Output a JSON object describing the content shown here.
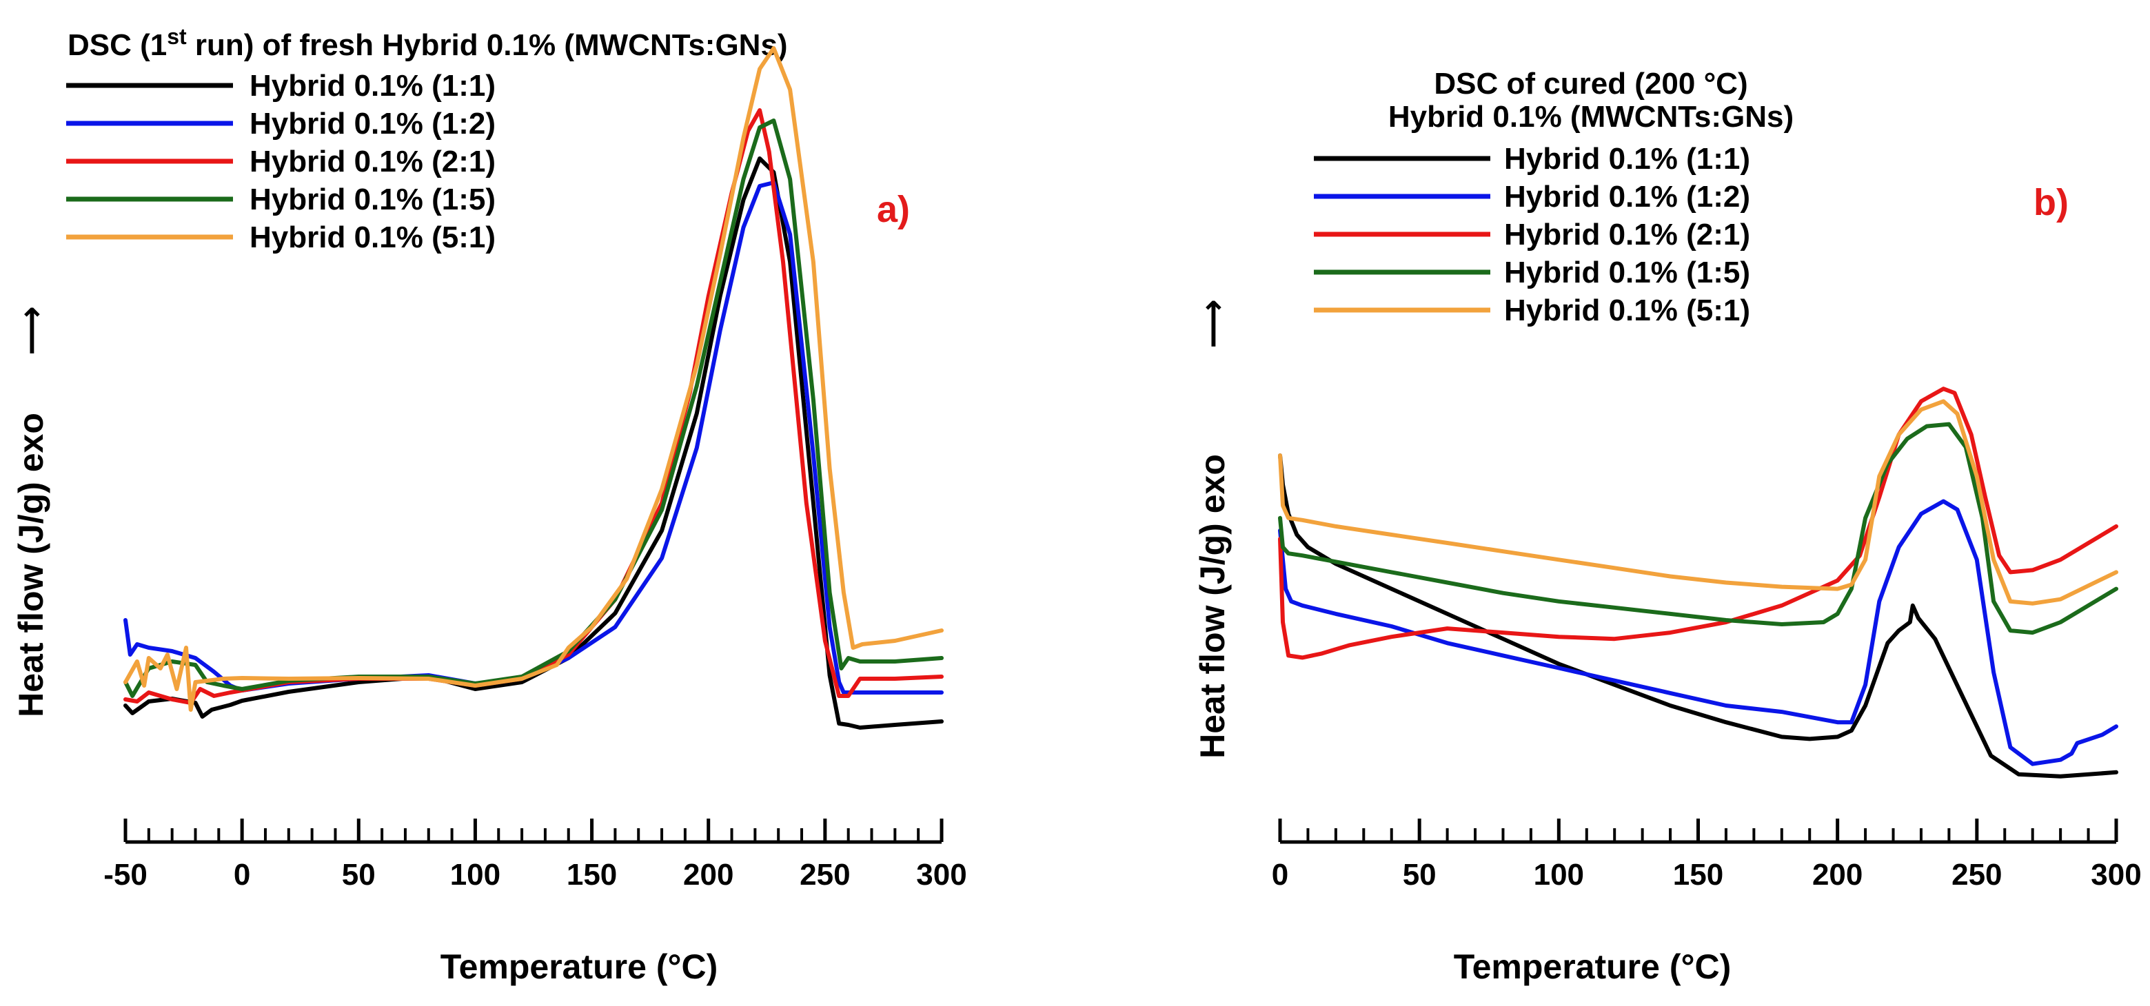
{
  "chart_data": [
    {
      "type": "line",
      "panel_tag": "a)",
      "title": {
        "prefix": "DSC (1",
        "superscript": "st",
        "suffix": " run) of fresh Hybrid 0.1% (MWCNTs:GNs)"
      },
      "xlabel": "Temperature (°C)",
      "ylabel": "Heat flow (J/g) exo",
      "ylabel_arrow": "⟶",
      "xlim": [
        -50,
        300
      ],
      "ylim": [
        0,
        100
      ],
      "y_ticks_shown": false,
      "x_ticks": [
        -50,
        0,
        50,
        100,
        150,
        200,
        250,
        300
      ],
      "x_tick_labels": [
        "-50",
        "0",
        "50",
        "100",
        "150",
        "200",
        "250",
        "300"
      ],
      "minor_tick_step": 10,
      "legend": {
        "position": "top-left"
      },
      "series": [
        {
          "name": "Hybrid 0.1% (1:1)",
          "color": "#000000",
          "x": [
            -50,
            -47,
            -40,
            -30,
            -20,
            -17,
            -13,
            -5,
            0,
            20,
            50,
            80,
            100,
            120,
            140,
            160,
            180,
            195,
            205,
            215,
            222,
            228,
            235,
            245,
            252,
            256,
            260,
            265,
            280,
            300
          ],
          "y": [
            10.6,
            9.5,
            11.2,
            11.6,
            11.0,
            9.0,
            10.0,
            10.7,
            11.3,
            12.6,
            14.0,
            14.8,
            13.0,
            14.0,
            17.5,
            24.0,
            36.0,
            53.0,
            70.0,
            84.0,
            90.0,
            88.0,
            75.0,
            40.0,
            15.0,
            8.0,
            7.8,
            7.4,
            7.8,
            8.3
          ]
        },
        {
          "name": "Hybrid 0.1% (1:2)",
          "color": "#0a15e8",
          "x": [
            -50,
            -48,
            -45,
            -40,
            -30,
            -20,
            -12,
            -5,
            0,
            20,
            50,
            80,
            100,
            120,
            140,
            160,
            180,
            195,
            205,
            215,
            222,
            228,
            235,
            245,
            252,
            256,
            258,
            262,
            280,
            300
          ],
          "y": [
            23.0,
            18.0,
            19.5,
            19.0,
            18.5,
            17.5,
            15.5,
            13.5,
            12.8,
            13.8,
            14.5,
            15.0,
            13.8,
            14.5,
            17.5,
            22.0,
            32.0,
            48.0,
            65.0,
            80.0,
            86.0,
            86.5,
            79.0,
            47.0,
            22.0,
            14.0,
            12.5,
            12.5,
            12.5,
            12.5
          ]
        },
        {
          "name": "Hybrid 0.1% (2:1)",
          "color": "#e81616",
          "x": [
            -50,
            -45,
            -40,
            -30,
            -22,
            -18,
            -12,
            -5,
            0,
            20,
            50,
            80,
            100,
            120,
            140,
            160,
            180,
            192,
            200,
            210,
            217,
            222,
            226,
            232,
            242,
            250,
            256,
            260,
            265,
            280,
            300
          ],
          "y": [
            11.5,
            11.2,
            12.5,
            11.5,
            11.0,
            13.0,
            12.0,
            12.5,
            12.8,
            14.0,
            14.5,
            14.5,
            13.5,
            14.5,
            18.0,
            26.0,
            40.0,
            56.0,
            70.0,
            85.0,
            94.0,
            97.0,
            91.0,
            75.0,
            40.0,
            20.0,
            12.0,
            12.0,
            14.5,
            14.5,
            14.8
          ]
        },
        {
          "name": "Hybrid 0.1% (1:5)",
          "color": "#1b6b1b",
          "x": [
            -50,
            -47,
            -40,
            -30,
            -20,
            -15,
            -8,
            0,
            20,
            50,
            80,
            100,
            120,
            140,
            160,
            180,
            195,
            205,
            215,
            222,
            228,
            235,
            245,
            252,
            257,
            260,
            265,
            280,
            300
          ],
          "y": [
            14.0,
            12.0,
            16.0,
            17.0,
            16.5,
            14.0,
            13.5,
            13.0,
            14.2,
            14.8,
            14.8,
            13.8,
            14.8,
            18.5,
            26.0,
            39.0,
            57.0,
            72.0,
            87.0,
            94.5,
            95.5,
            87.0,
            55.0,
            27.0,
            16.0,
            17.5,
            17.0,
            17.0,
            17.5
          ]
        },
        {
          "name": "Hybrid 0.1% (5:1)",
          "color": "#f2a23c",
          "x": [
            -50,
            -45,
            -42,
            -40,
            -35,
            -32,
            -28,
            -24,
            -22,
            -20,
            -15,
            -8,
            0,
            20,
            50,
            80,
            100,
            120,
            135,
            140,
            150,
            165,
            180,
            195,
            205,
            215,
            222,
            228,
            235,
            245,
            252,
            258,
            262,
            266,
            280,
            300
          ],
          "y": [
            14.0,
            17.0,
            13.5,
            17.5,
            16.0,
            18.0,
            13.0,
            19.0,
            10.0,
            14.0,
            14.2,
            14.5,
            14.6,
            14.5,
            14.6,
            14.5,
            13.5,
            14.5,
            16.5,
            19.0,
            22.0,
            29.0,
            42.0,
            60.0,
            76.0,
            93.0,
            103.0,
            106.0,
            100.0,
            75.0,
            45.0,
            27.0,
            19.0,
            19.5,
            20.0,
            21.5
          ]
        }
      ]
    },
    {
      "type": "line",
      "panel_tag": "b)",
      "title": {
        "line1": "DSC of cured (200 °C)",
        "line2": "Hybrid 0.1% (MWCNTs:GNs)"
      },
      "xlabel": "Temperature (°C)",
      "ylabel": "Heat flow (J/g) exo",
      "ylabel_arrow": "⟶",
      "xlim": [
        0,
        300
      ],
      "ylim": [
        0,
        100
      ],
      "y_ticks_shown": false,
      "x_ticks": [
        0,
        50,
        100,
        150,
        200,
        250,
        300
      ],
      "x_tick_labels": [
        "0",
        "50",
        "100",
        "150",
        "200",
        "250",
        "300"
      ],
      "minor_tick_step": 10,
      "legend": {
        "position": "top-left"
      },
      "series": [
        {
          "name": "Hybrid 0.1% (1:1)",
          "color": "#000000",
          "x": [
            0,
            1,
            3,
            6,
            10,
            20,
            40,
            60,
            80,
            100,
            120,
            140,
            160,
            180,
            190,
            200,
            205,
            210,
            218,
            222,
            226,
            227,
            229,
            235,
            245,
            255,
            265,
            280,
            300
          ],
          "y": [
            80.0,
            73.0,
            66.0,
            61.0,
            58.0,
            54.0,
            48.0,
            42.0,
            36.0,
            30.0,
            25.0,
            20.0,
            16.0,
            12.5,
            12.0,
            12.5,
            14.0,
            20.0,
            35.0,
            38.0,
            40.0,
            44.0,
            41.0,
            36.0,
            22.0,
            8.0,
            3.5,
            3.0,
            4.0
          ]
        },
        {
          "name": "Hybrid 0.1% (1:2)",
          "color": "#0a15e8",
          "x": [
            0,
            1,
            2,
            4,
            8,
            20,
            40,
            60,
            80,
            100,
            120,
            140,
            160,
            180,
            200,
            205,
            210,
            215,
            222,
            230,
            238,
            243,
            250,
            256,
            262,
            270,
            280,
            284,
            286,
            295,
            300
          ],
          "y": [
            62.0,
            55.0,
            48.0,
            45.0,
            44.0,
            42.0,
            39.0,
            35.0,
            32.0,
            29.0,
            26.0,
            23.0,
            20.0,
            18.5,
            16.0,
            16.0,
            25.0,
            45.0,
            58.0,
            66.0,
            69.0,
            67.0,
            55.0,
            28.0,
            10.0,
            6.0,
            7.0,
            8.5,
            11.0,
            13.0,
            15.0
          ]
        },
        {
          "name": "Hybrid 0.1% (2:1)",
          "color": "#e81616",
          "x": [
            0,
            1,
            3,
            8,
            15,
            25,
            40,
            60,
            80,
            100,
            120,
            140,
            160,
            180,
            200,
            208,
            215,
            222,
            230,
            238,
            242,
            248,
            253,
            258,
            262,
            270,
            280,
            300
          ],
          "y": [
            60.0,
            40.0,
            32.0,
            31.5,
            32.5,
            34.5,
            36.5,
            38.5,
            37.5,
            36.5,
            36.0,
            37.5,
            40.0,
            44.0,
            50.0,
            56.0,
            70.0,
            85.0,
            93.0,
            96.0,
            95.0,
            85.0,
            70.0,
            56.0,
            52.0,
            52.5,
            55.0,
            63.0
          ]
        },
        {
          "name": "Hybrid 0.1% (1:5)",
          "color": "#1b6b1b",
          "x": [
            0,
            1,
            3,
            8,
            20,
            40,
            60,
            80,
            100,
            120,
            140,
            160,
            180,
            195,
            200,
            205,
            210,
            218,
            225,
            232,
            240,
            246,
            252,
            256,
            262,
            270,
            280,
            300
          ],
          "y": [
            65.0,
            58.0,
            56.5,
            56.0,
            54.5,
            52.0,
            49.5,
            47.0,
            45.0,
            43.5,
            42.0,
            40.5,
            39.5,
            40.0,
            42.0,
            48.0,
            65.0,
            78.0,
            84.0,
            87.0,
            87.5,
            82.0,
            65.0,
            45.0,
            38.0,
            37.5,
            40.0,
            48.0
          ]
        },
        {
          "name": "Hybrid 0.1% (5:1)",
          "color": "#f2a23c",
          "x": [
            0,
            1,
            3,
            8,
            20,
            40,
            60,
            80,
            100,
            120,
            140,
            160,
            180,
            200,
            205,
            210,
            215,
            222,
            230,
            238,
            243,
            250,
            256,
            262,
            270,
            280,
            300
          ],
          "y": [
            80.0,
            68.0,
            65.0,
            64.5,
            63.0,
            61.0,
            59.0,
            57.0,
            55.0,
            53.0,
            51.0,
            49.5,
            48.5,
            48.0,
            49.0,
            55.0,
            75.0,
            85.0,
            91.0,
            93.0,
            90.0,
            75.0,
            55.0,
            45.0,
            44.5,
            45.5,
            52.0
          ]
        }
      ]
    }
  ]
}
